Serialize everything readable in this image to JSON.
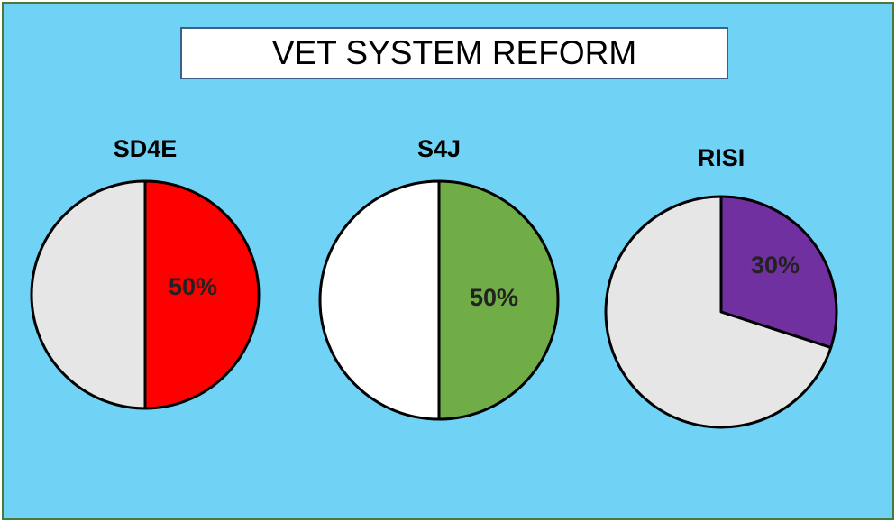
{
  "title": "VET SYSTEM REFORM",
  "chart_data": [
    {
      "type": "pie",
      "title": "SD4E",
      "slices": [
        {
          "value": 50,
          "label": "50%",
          "color": "#ff0000"
        },
        {
          "value": 50,
          "label": "",
          "color": "#e6e6e6"
        }
      ]
    },
    {
      "type": "pie",
      "title": "S4J",
      "slices": [
        {
          "value": 50,
          "label": "50%",
          "color": "#70ad47"
        },
        {
          "value": 50,
          "label": "",
          "color": "#ffffff"
        }
      ]
    },
    {
      "type": "pie",
      "title": "RISI",
      "slices": [
        {
          "value": 30,
          "label": "30%",
          "color": "#7030a0"
        },
        {
          "value": 70,
          "label": "",
          "color": "#e6e6e6"
        }
      ]
    }
  ]
}
